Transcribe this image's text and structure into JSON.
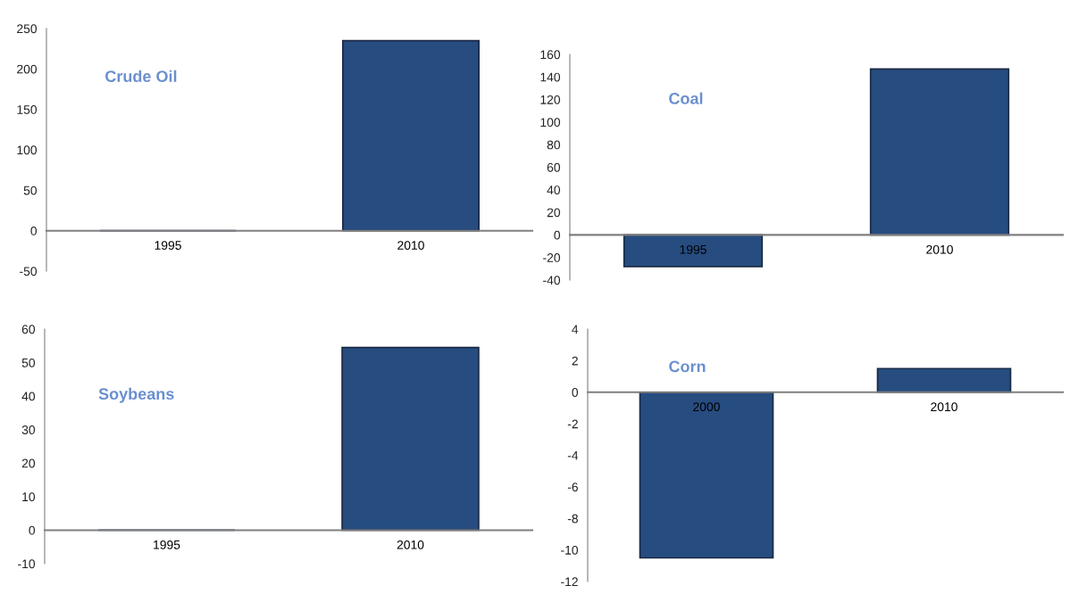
{
  "chart_data": [
    {
      "type": "bar",
      "title": "Crude Oil",
      "categories": [
        "1995",
        "2010"
      ],
      "values": [
        0,
        235
      ],
      "color": "#264c80",
      "ylim": [
        -50,
        250
      ],
      "yticks": [
        -50,
        0,
        50,
        100,
        150,
        200,
        250
      ]
    },
    {
      "type": "bar",
      "title": "Coal",
      "categories": [
        "1995",
        "2010"
      ],
      "values": [
        -28,
        147
      ],
      "color": "#264c80",
      "ylim": [
        -40,
        160
      ],
      "yticks": [
        -40,
        -20,
        0,
        20,
        40,
        60,
        80,
        100,
        120,
        140,
        160
      ]
    },
    {
      "type": "bar",
      "title": "Soybeans",
      "categories": [
        "1995",
        "2010"
      ],
      "values": [
        0,
        54.5
      ],
      "color": "#264c80",
      "ylim": [
        -10,
        60
      ],
      "yticks": [
        -10,
        0,
        10,
        20,
        30,
        40,
        50,
        60
      ]
    },
    {
      "type": "bar",
      "title": "Corn",
      "categories": [
        "2000",
        "2010"
      ],
      "values": [
        -10.5,
        1.5
      ],
      "color": "#264c80",
      "ylim": [
        -12,
        4
      ],
      "yticks": [
        -12,
        -10,
        -8,
        -6,
        -4,
        -2,
        0,
        2,
        4
      ]
    }
  ]
}
